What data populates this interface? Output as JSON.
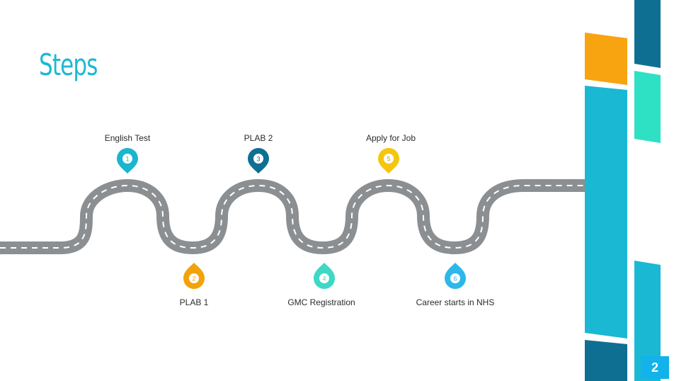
{
  "slide": {
    "title": "Steps",
    "page_number": "2"
  },
  "steps": [
    {
      "number": "1",
      "label": "English Test",
      "color": "#1ab5cf"
    },
    {
      "number": "2",
      "label": "PLAB 1",
      "color": "#f2a20c"
    },
    {
      "number": "3",
      "label": "PLAB 2",
      "color": "#0e6f93"
    },
    {
      "number": "4",
      "label": "GMC Registration",
      "color": "#3ed8c5"
    },
    {
      "number": "5",
      "label": "Apply for Job",
      "color": "#f4c60f"
    },
    {
      "number": "6",
      "label": "Career starts in NHS",
      "color": "#2db8ea"
    }
  ],
  "colors": {
    "title": "#1fb8d2",
    "road": "#8c8f92",
    "road_dash": "#ffffff",
    "accent_orange": "#f7a410",
    "accent_cyan": "#1ab8d3",
    "accent_teal": "#2ee0c4",
    "accent_navy": "#0e6f93",
    "accent_blue": "#12b2ea"
  },
  "icons": [
    "map-pin-icon"
  ]
}
